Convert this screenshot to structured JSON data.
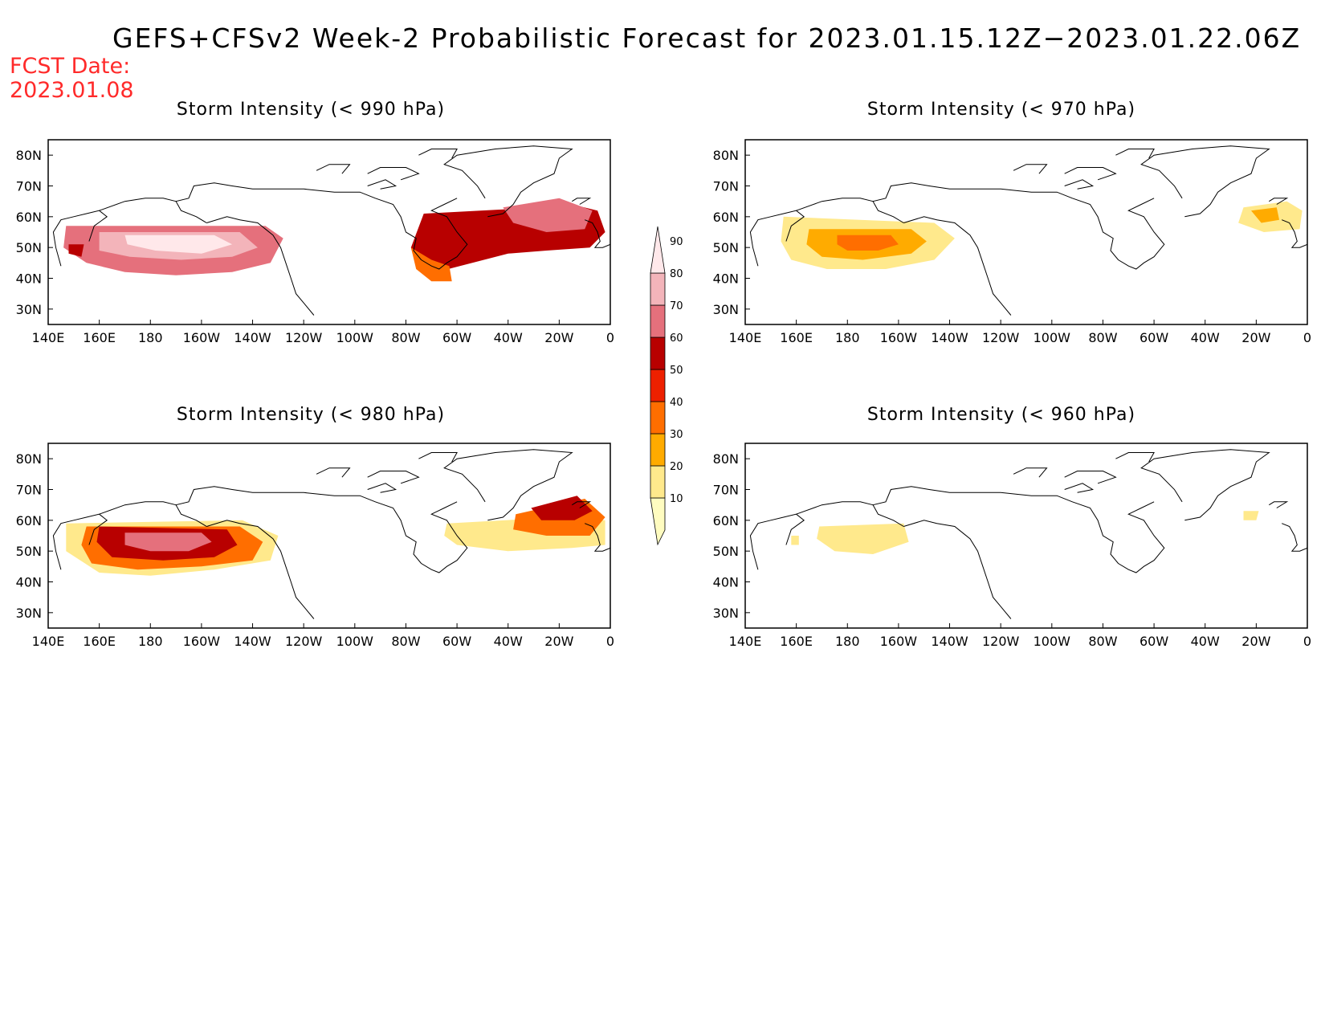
{
  "title": "GEFS+CFSv2 Week-2 Probabilistic Forecast for 2023.01.15.12Z−2023.01.22.06Z",
  "fcst_label": "FCST Date:",
  "fcst_date": "2023.01.08",
  "colors": {
    "levels": [
      "#fffcc0",
      "#ffe98c",
      "#ffab00",
      "#ff6e00",
      "#ed2000",
      "#b80000",
      "#e5707c",
      "#f3b4ba",
      "#ffe8ea"
    ],
    "fcst_text": "#ff2a2a"
  },
  "colorbar": {
    "labels": [
      "10",
      "20",
      "30",
      "40",
      "50",
      "60",
      "70",
      "80",
      "90"
    ]
  },
  "axes": {
    "lon_labels": [
      "140E",
      "160E",
      "180",
      "160W",
      "140W",
      "120W",
      "100W",
      "80W",
      "60W",
      "40W",
      "20W",
      "0"
    ],
    "lat_labels": [
      "80N",
      "70N",
      "60N",
      "50N",
      "40N",
      "30N"
    ],
    "lon_range": [
      140,
      360
    ],
    "lat_range": [
      25,
      85
    ]
  },
  "panels": [
    {
      "title": "Storm Intensity (< 990 hPa)",
      "areas": [
        {
          "level": 6,
          "points": [
            [
              147,
              57
            ],
            [
              225,
              57
            ],
            [
              232,
              53
            ],
            [
              227,
              45
            ],
            [
              212,
              42
            ],
            [
              190,
              41
            ],
            [
              170,
              42
            ],
            [
              155,
              45
            ],
            [
              146,
              50
            ]
          ]
        },
        {
          "level": 7,
          "points": [
            [
              160,
              55
            ],
            [
              215,
              55
            ],
            [
              222,
              50
            ],
            [
              212,
              47
            ],
            [
              192,
              46
            ],
            [
              172,
              47
            ],
            [
              160,
              49
            ]
          ]
        },
        {
          "level": 8,
          "points": [
            [
              170,
              54
            ],
            [
              205,
              54
            ],
            [
              212,
              51
            ],
            [
              200,
              48
            ],
            [
              182,
              49
            ],
            [
              171,
              51
            ]
          ]
        },
        {
          "level": 5,
          "points": [
            [
              287,
              61
            ],
            [
              333,
              63
            ],
            [
              345,
              64
            ],
            [
              355,
              62
            ],
            [
              358,
              55
            ],
            [
              352,
              50
            ],
            [
              335,
              49
            ],
            [
              320,
              48
            ],
            [
              306,
              45
            ],
            [
              292,
              42
            ],
            [
              284,
              44
            ],
            [
              282,
              50
            ]
          ]
        },
        {
          "level": 3,
          "points": [
            [
              282,
              50
            ],
            [
              290,
              46
            ],
            [
              297,
              44
            ],
            [
              298,
              39
            ],
            [
              290,
              39
            ],
            [
              284,
              43
            ]
          ]
        },
        {
          "level": 6,
          "points": [
            [
              318,
              63
            ],
            [
              340,
              66
            ],
            [
              353,
              62
            ],
            [
              350,
              56
            ],
            [
              335,
              55
            ],
            [
              322,
              58
            ]
          ]
        },
        {
          "level": 5,
          "points": [
            [
              148,
              51
            ],
            [
              154,
              51
            ],
            [
              153,
              47
            ],
            [
              148,
              48
            ]
          ]
        }
      ]
    },
    {
      "title": "Storm Intensity (< 970 hPa)",
      "areas": [
        {
          "level": 1,
          "points": [
            [
              155,
              60
            ],
            [
              214,
              58
            ],
            [
              222,
              53
            ],
            [
              214,
              46
            ],
            [
              195,
              43
            ],
            [
              172,
              43
            ],
            [
              158,
              46
            ],
            [
              154,
              52
            ]
          ]
        },
        {
          "level": 2,
          "points": [
            [
              165,
              56
            ],
            [
              205,
              56
            ],
            [
              211,
              52
            ],
            [
              205,
              48
            ],
            [
              186,
              46
            ],
            [
              170,
              47
            ],
            [
              164,
              51
            ]
          ]
        },
        {
          "level": 3,
          "points": [
            [
              176,
              54
            ],
            [
              197,
              54
            ],
            [
              200,
              51
            ],
            [
              192,
              49
            ],
            [
              180,
              49
            ],
            [
              176,
              51
            ]
          ]
        },
        {
          "level": 1,
          "points": [
            [
              335,
              63
            ],
            [
              352,
              65
            ],
            [
              358,
              62
            ],
            [
              357,
              56
            ],
            [
              343,
              55
            ],
            [
              333,
              58
            ]
          ]
        },
        {
          "level": 2,
          "points": [
            [
              338,
              62
            ],
            [
              348,
              63
            ],
            [
              349,
              59
            ],
            [
              342,
              58
            ]
          ]
        }
      ]
    },
    {
      "title": "Storm Intensity (< 980 hPa)",
      "areas": [
        {
          "level": 1,
          "points": [
            [
              147,
              59
            ],
            [
              216,
              60
            ],
            [
              230,
              55
            ],
            [
              227,
              47
            ],
            [
              205,
              44
            ],
            [
              180,
              42
            ],
            [
              160,
              43
            ],
            [
              147,
              50
            ]
          ]
        },
        {
          "level": 3,
          "points": [
            [
              155,
              58
            ],
            [
              215,
              58
            ],
            [
              224,
              53
            ],
            [
              220,
              47
            ],
            [
              200,
              45
            ],
            [
              175,
              44
            ],
            [
              157,
              46
            ],
            [
              153,
              52
            ]
          ]
        },
        {
          "level": 5,
          "points": [
            [
              160,
              58
            ],
            [
              210,
              57
            ],
            [
              214,
              52
            ],
            [
              205,
              48
            ],
            [
              185,
              47
            ],
            [
              165,
              48
            ],
            [
              159,
              53
            ]
          ]
        },
        {
          "level": 6,
          "points": [
            [
              170,
              56
            ],
            [
              200,
              56
            ],
            [
              204,
              53
            ],
            [
              195,
              50
            ],
            [
              180,
              50
            ],
            [
              170,
              52
            ]
          ]
        },
        {
          "level": 1,
          "points": [
            [
              296,
              59
            ],
            [
              340,
              61
            ],
            [
              358,
              60
            ],
            [
              358,
              52
            ],
            [
              345,
              51
            ],
            [
              320,
              50
            ],
            [
              300,
              52
            ],
            [
              295,
              55
            ]
          ]
        },
        {
          "level": 3,
          "points": [
            [
              323,
              62
            ],
            [
              350,
              67
            ],
            [
              358,
              61
            ],
            [
              352,
              55
            ],
            [
              335,
              55
            ],
            [
              322,
              57
            ]
          ]
        },
        {
          "level": 5,
          "points": [
            [
              329,
              64
            ],
            [
              347,
              68
            ],
            [
              353,
              63
            ],
            [
              346,
              60
            ],
            [
              333,
              60
            ]
          ]
        }
      ]
    },
    {
      "title": "Storm Intensity (< 960 hPa)",
      "areas": [
        {
          "level": 1,
          "points": [
            [
              169,
              58
            ],
            [
              202,
              59
            ],
            [
              204,
              53
            ],
            [
              190,
              49
            ],
            [
              175,
              50
            ],
            [
              168,
              54
            ]
          ]
        },
        {
          "level": 1,
          "points": [
            [
              335,
              63
            ],
            [
              341,
              63
            ],
            [
              340,
              60
            ],
            [
              335,
              60
            ]
          ]
        },
        {
          "level": 1,
          "points": [
            [
              158,
              55
            ],
            [
              161,
              55
            ],
            [
              161,
              52
            ],
            [
              158,
              52
            ]
          ]
        }
      ]
    }
  ]
}
